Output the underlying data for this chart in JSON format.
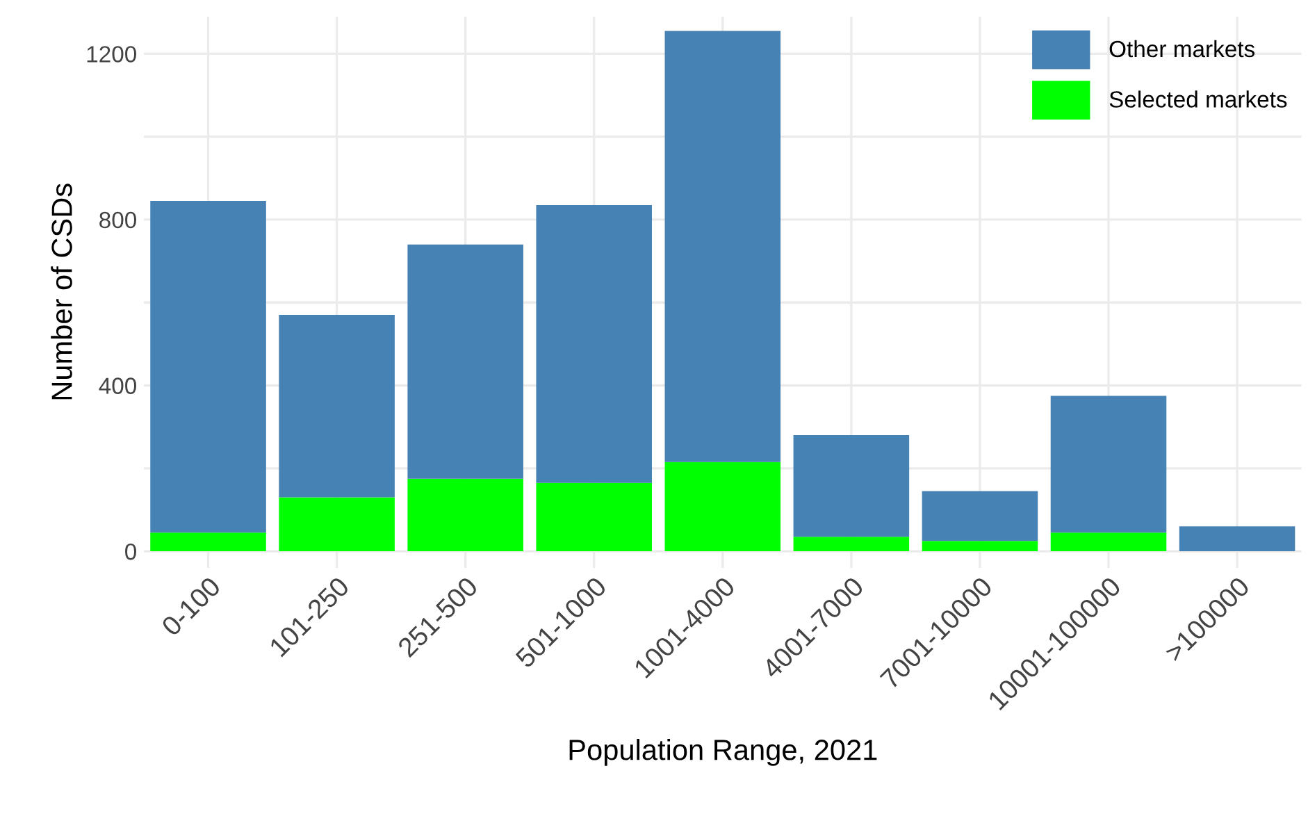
{
  "chart_data": {
    "type": "bar",
    "stacked": true,
    "xlabel": "Population Range, 2021",
    "ylabel": "Number of CSDs",
    "categories": [
      "0-100",
      "101-250",
      "251-500",
      "501-1000",
      "1001-4000",
      "4001-7000",
      "7001-10000",
      "10001-100000",
      ">100000"
    ],
    "series": [
      {
        "name": "Selected markets",
        "color": "#00ff00",
        "values": [
          45,
          130,
          175,
          165,
          215,
          35,
          25,
          45,
          0
        ]
      },
      {
        "name": "Other markets",
        "color": "#4682b4",
        "values": [
          800,
          440,
          565,
          670,
          1040,
          245,
          120,
          330,
          60
        ]
      }
    ],
    "ylim": [
      -40,
      1290
    ],
    "yticks": [
      0,
      {
        "value": 200,
        "label": null
      },
      400,
      {
        "value": 600,
        "label": null
      },
      800,
      {
        "value": 1000,
        "label": null
      },
      1200
    ],
    "grid": true,
    "legend": "top right"
  }
}
